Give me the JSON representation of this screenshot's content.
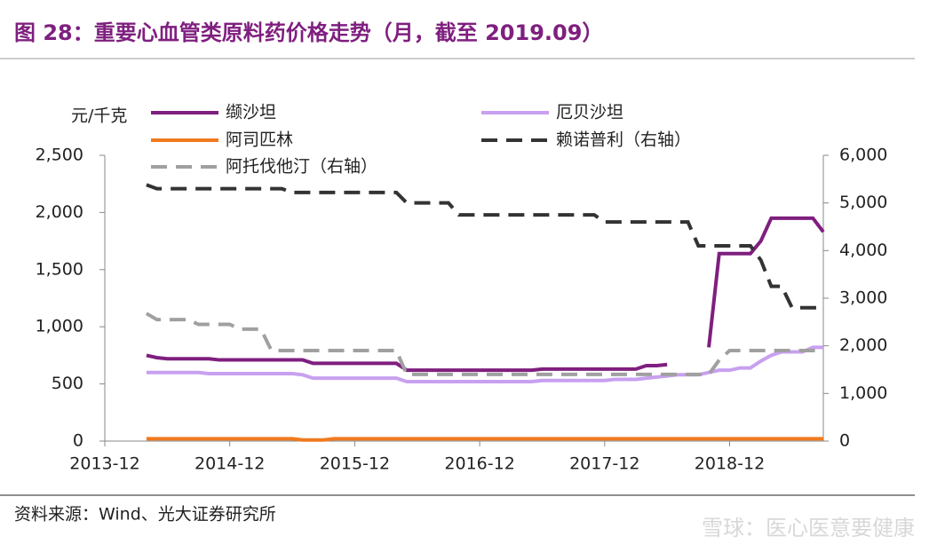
{
  "title": "图 28：重要心血管类原料药价格走势（月，截至 2019.09）",
  "source": "资料来源：Wind、光大证券研究所",
  "watermark": "雪球：医心医意要健康",
  "chart_data": {
    "type": "line",
    "y_label": "元/千克",
    "categories": [
      "2013-12",
      null,
      null,
      null,
      null,
      null,
      null,
      null,
      null,
      null,
      null,
      null,
      "2014-12",
      null,
      null,
      null,
      null,
      null,
      null,
      null,
      null,
      null,
      null,
      null,
      "2015-12",
      null,
      null,
      null,
      null,
      null,
      null,
      null,
      null,
      null,
      null,
      null,
      "2016-12",
      null,
      null,
      null,
      null,
      null,
      null,
      null,
      null,
      null,
      null,
      null,
      "2017-12",
      null,
      null,
      null,
      null,
      null,
      null,
      null,
      null,
      null,
      null,
      null,
      "2018-12",
      null,
      null,
      null,
      null,
      null,
      null,
      null,
      null,
      null
    ],
    "ylim": [
      0,
      2500
    ],
    "yticks": [
      0,
      500,
      {
        "value": 1000,
        "label": "1,000"
      },
      {
        "value": 1500,
        "label": "1,500"
      },
      {
        "value": 2000,
        "label": "2,000"
      },
      {
        "value": 2500,
        "label": "2,500"
      }
    ],
    "y2lim": [
      0,
      6000
    ],
    "y2ticks": [
      0,
      {
        "value": 1000,
        "label": "1,000"
      },
      {
        "value": 2000,
        "label": "2,000"
      },
      {
        "value": 3000,
        "label": "3,000"
      },
      {
        "value": 4000,
        "label": "4,000"
      },
      {
        "value": 5000,
        "label": "5,000"
      },
      {
        "value": 6000,
        "label": "6,000"
      }
    ],
    "series": [
      {
        "name": "缬沙坦",
        "color": "#7f1f7f",
        "dashed": false,
        "values": [
          null,
          null,
          null,
          null,
          750,
          730,
          720,
          720,
          720,
          720,
          720,
          710,
          710,
          710,
          710,
          710,
          710,
          710,
          710,
          710,
          680,
          680,
          680,
          680,
          680,
          680,
          680,
          680,
          680,
          620,
          620,
          620,
          620,
          620,
          620,
          620,
          620,
          620,
          620,
          620,
          620,
          620,
          630,
          630,
          630,
          630,
          630,
          630,
          630,
          630,
          630,
          630,
          660,
          660,
          670,
          null,
          null,
          null,
          820,
          1640,
          1640,
          1640,
          1640,
          1750,
          1950,
          1950,
          1950,
          1950,
          1950,
          1830
        ]
      },
      {
        "name": "厄贝沙坦",
        "color": "#c8a0f0",
        "dashed": false,
        "values": [
          null,
          null,
          null,
          null,
          600,
          600,
          600,
          600,
          600,
          600,
          590,
          590,
          590,
          590,
          590,
          590,
          590,
          590,
          590,
          580,
          550,
          550,
          550,
          550,
          550,
          550,
          550,
          550,
          550,
          520,
          520,
          520,
          520,
          520,
          520,
          520,
          520,
          520,
          520,
          520,
          520,
          520,
          530,
          530,
          530,
          530,
          530,
          530,
          530,
          540,
          540,
          540,
          550,
          560,
          570,
          580,
          580,
          580,
          600,
          620,
          620,
          640,
          640,
          700,
          750,
          780,
          780,
          780,
          820,
          820
        ]
      },
      {
        "name": "阿司匹林",
        "color": "#f07a1e",
        "dashed": false,
        "values": [
          null,
          null,
          null,
          null,
          20,
          20,
          20,
          20,
          20,
          20,
          20,
          20,
          20,
          20,
          20,
          20,
          20,
          20,
          20,
          10,
          10,
          10,
          20,
          20,
          20,
          20,
          20,
          20,
          20,
          20,
          20,
          20,
          20,
          20,
          20,
          20,
          20,
          20,
          20,
          20,
          20,
          20,
          20,
          20,
          20,
          20,
          20,
          20,
          20,
          20,
          20,
          20,
          20,
          20,
          20,
          20,
          20,
          20,
          20,
          20,
          20,
          20,
          20,
          20,
          20,
          20,
          20,
          20,
          20,
          20
        ]
      },
      {
        "name": "赖诺普利（右轴）",
        "color": "#333333",
        "dashed": true,
        "axis": "y2",
        "values": [
          null,
          null,
          null,
          null,
          5380,
          5300,
          5300,
          5300,
          5300,
          5300,
          5300,
          5300,
          5300,
          5300,
          5300,
          5300,
          5300,
          5300,
          5220,
          5220,
          5220,
          5220,
          5220,
          5220,
          5220,
          5220,
          5220,
          5220,
          5220,
          5000,
          5000,
          5000,
          5000,
          5000,
          4750,
          4750,
          4750,
          4750,
          4750,
          4750,
          4750,
          4750,
          4750,
          4750,
          4750,
          4750,
          4750,
          4750,
          4600,
          4600,
          4600,
          4600,
          4600,
          4600,
          4600,
          4600,
          4600,
          4100,
          4100,
          4100,
          4100,
          4100,
          4100,
          3800,
          3250,
          3250,
          2800,
          2800,
          2800,
          2800
        ]
      },
      {
        "name": "阿托伐他汀（右轴）",
        "color": "#a0a0a0",
        "dashed": true,
        "axis": "y2",
        "values": [
          null,
          null,
          null,
          null,
          2680,
          2550,
          2550,
          2550,
          2550,
          2450,
          2450,
          2450,
          2450,
          2350,
          2350,
          2350,
          1900,
          1900,
          1900,
          1900,
          1900,
          1900,
          1900,
          1900,
          1900,
          1900,
          1900,
          1900,
          1900,
          1400,
          1400,
          1400,
          1400,
          1400,
          1400,
          1400,
          1400,
          1400,
          1400,
          1400,
          1400,
          1400,
          1400,
          1400,
          1400,
          1400,
          1400,
          1400,
          1400,
          1400,
          1400,
          1400,
          1400,
          1400,
          1400,
          1400,
          1400,
          1400,
          1400,
          1700,
          1900,
          1900,
          1900,
          1900,
          1900,
          1900,
          1900,
          1900,
          1900,
          1900
        ]
      }
    ]
  }
}
